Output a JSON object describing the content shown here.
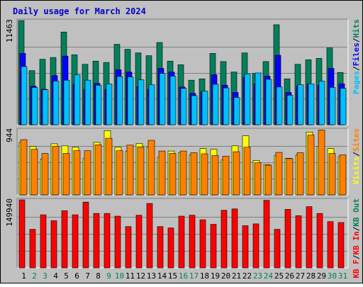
{
  "chart_data": {
    "type": "bar",
    "title": "Daily usage for March 2024",
    "colors": {
      "background": "#c0c0c0",
      "title": "#0000cc",
      "hits": "#00805c",
      "files": "#0000ff",
      "pages": "#00c0ff",
      "visits": "#ffff00",
      "sites": "#ff8000",
      "kbin": "#ff0000",
      "dayWeekday": "#000000",
      "dayWeekend": "#00805c"
    },
    "days": [
      "1",
      "2",
      "3",
      "4",
      "5",
      "6",
      "7",
      "8",
      "9",
      "10",
      "11",
      "12",
      "13",
      "14",
      "15",
      "16",
      "17",
      "18",
      "19",
      "20",
      "21",
      "22",
      "23",
      "24",
      "25",
      "26",
      "27",
      "28",
      "29",
      "30",
      "31"
    ],
    "weekend_days": [
      "2",
      "3",
      "9",
      "10",
      "16",
      "17",
      "23",
      "24",
      "30",
      "31"
    ],
    "panels": [
      {
        "max_label": "11463",
        "legend": [
          {
            "label": "Pages",
            "color": "#00c0ff"
          },
          {
            "label": "/",
            "color": "#000000"
          },
          {
            "label": "Files",
            "color": "#0000ff"
          },
          {
            "label": "/",
            "color": "#000000"
          },
          {
            "label": "Hits",
            "color": "#00805c"
          }
        ],
        "ymax": 11463,
        "series": [
          {
            "key": "hits",
            "values": [
              11463,
              5950,
              7200,
              7400,
              10200,
              7700,
              6650,
              7000,
              6850,
              8850,
              8300,
              7900,
              7600,
              9050,
              7000,
              6600,
              4900,
              5050,
              7850,
              6950,
              5800,
              7900,
              5650,
              6950,
              11000,
              5050,
              6650,
              7150,
              7300,
              8450,
              5750
            ]
          },
          {
            "key": "files",
            "values": [
              7850,
              4250,
              3900,
              5400,
              7550,
              4450,
              3900,
              4550,
              3900,
              6050,
              5800,
              4200,
              3900,
              6200,
              5800,
              4150,
              3450,
              3650,
              5500,
              4350,
              3550,
              5200,
              4500,
              5350,
              7650,
              3550,
              4250,
              4500,
              4350,
              6200,
              4500
            ]
          },
          {
            "key": "pages",
            "values": [
              6400,
              4100,
              3850,
              4800,
              4900,
              5500,
              4900,
              4350,
              4500,
              5300,
              5250,
              4950,
              4400,
              5650,
              5350,
              4000,
              3200,
              3700,
              4450,
              4050,
              3000,
              5600,
              5700,
              5000,
              4150,
              3250,
              4400,
              4500,
              4800,
              4100,
              4000
            ]
          }
        ]
      },
      {
        "max_label": "944",
        "legend": [
          {
            "label": "Visits",
            "color": "#ffff00"
          },
          {
            "label": "/",
            "color": "#000000"
          },
          {
            "label": "Sites",
            "color": "#ff8000"
          }
        ],
        "ymax": 944,
        "series": [
          {
            "key": "visits",
            "values": [
              760,
              700,
              520,
              740,
              710,
              690,
              525,
              760,
              930,
              690,
              630,
              745,
              690,
              545,
              635,
              610,
              580,
              670,
              660,
              505,
              710,
              855,
              495,
              440,
              570,
              530,
              575,
              910,
              705,
              670,
              555
            ]
          },
          {
            "key": "sites",
            "values": [
              800,
              660,
              600,
              705,
              600,
              640,
              640,
              725,
              820,
              640,
              720,
              695,
              790,
              635,
              600,
              635,
              610,
              595,
              570,
              560,
              625,
              690,
              465,
              430,
              615,
              525,
              610,
              865,
              940,
              600,
              580
            ]
          }
        ]
      },
      {
        "max_label": "149940",
        "legend": [
          {
            "label": "KB F",
            "color": "#ff0000"
          },
          {
            "label": "/",
            "color": "#000000"
          },
          {
            "label": "KB In",
            "color": "#ff0000"
          },
          {
            "label": "/",
            "color": "#000000"
          },
          {
            "label": "KB Out",
            "color": "#00805c"
          }
        ],
        "ymax": 149940,
        "series": [
          {
            "key": "kbin",
            "values": [
              149940,
              85000,
              117000,
              104000,
              126000,
              117000,
              145000,
              120000,
              120000,
              114000,
              91000,
              116000,
              142000,
              91000,
              88000,
              114000,
              116000,
              106000,
              96000,
              127000,
              130000,
              93000,
              97000,
              149000,
              85000,
              129000,
              115000,
              135000,
              120000,
              102000,
              100000
            ]
          }
        ]
      }
    ]
  }
}
